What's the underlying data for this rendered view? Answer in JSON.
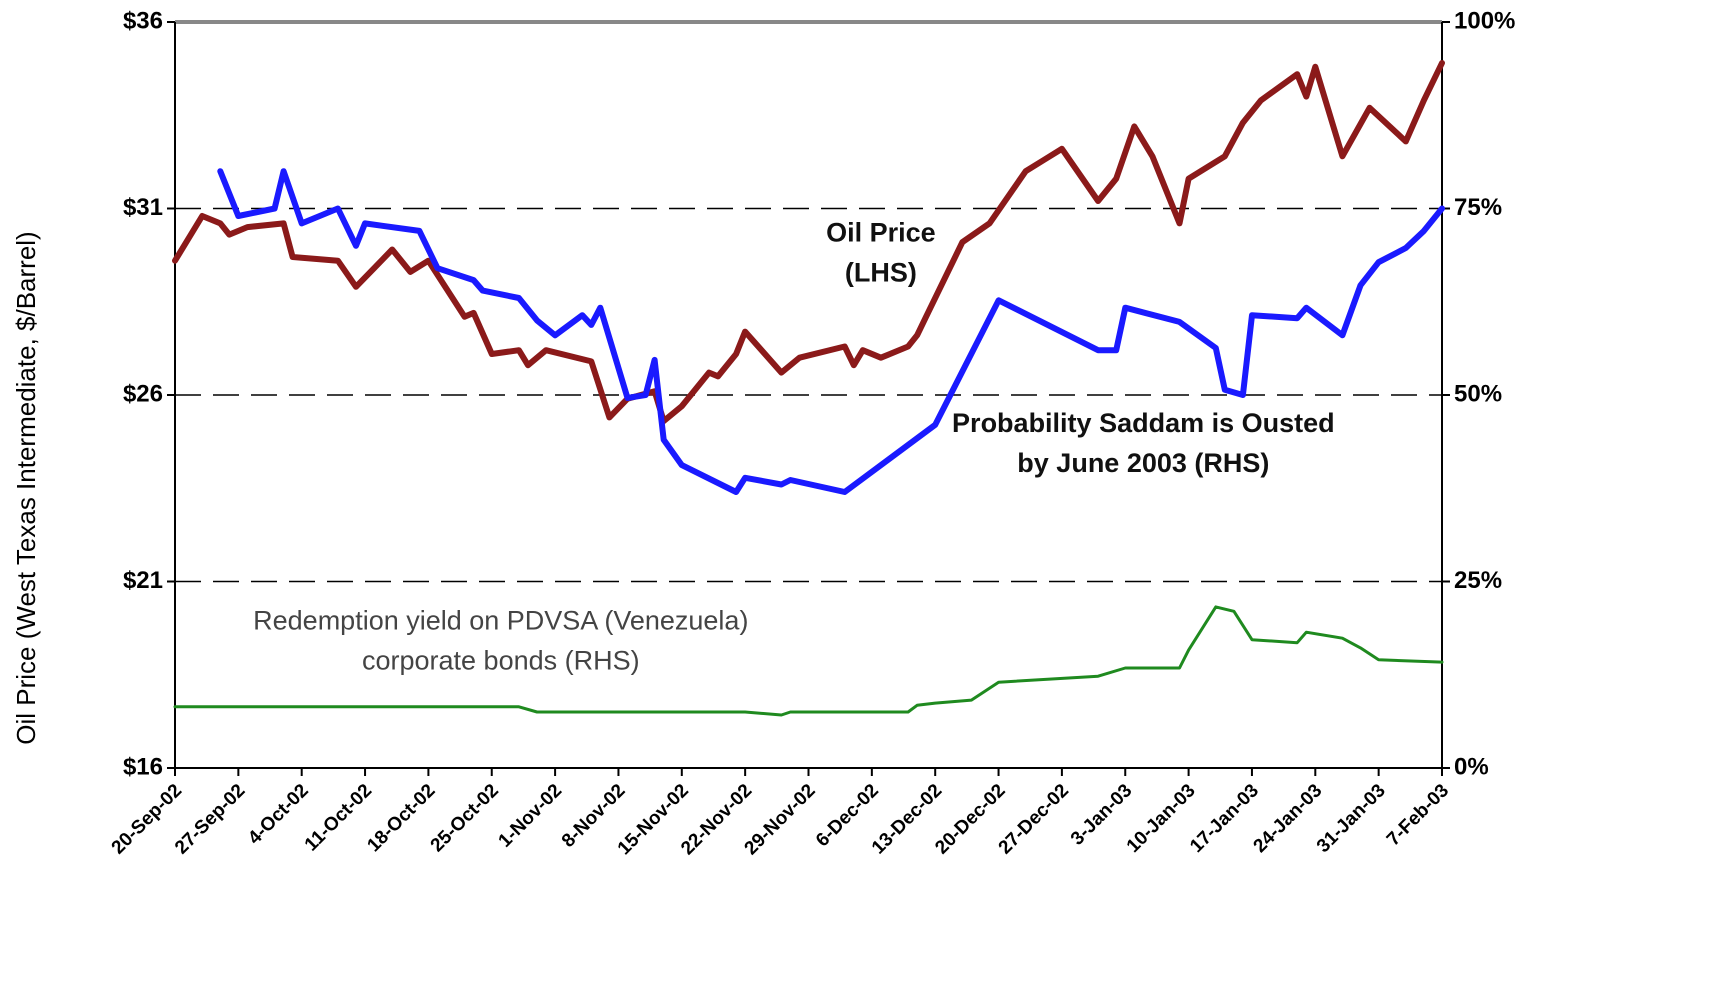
{
  "chart_data": {
    "type": "line",
    "y_label": "Oil Price (West Texas Intermediate, $/Barrel)",
    "annotations": [
      {
        "lines": [
          "Oil Price",
          "(LHS)"
        ],
        "at": [
          "2002-12-07",
          30.3
        ],
        "bold": true
      },
      {
        "lines": [
          "Probability Saddam is Ousted",
          "by June 2003 (RHS)"
        ],
        "at": [
          "2003-01-05",
          46
        ],
        "bold": true,
        "axis": "y2"
      },
      {
        "lines": [
          "Redemption yield on PDVSA (Venezuela)",
          "corporate bonds (RHS)"
        ],
        "at": [
          "2002-10-26",
          19.5
        ],
        "bold": false,
        "axis": "y2"
      }
    ],
    "xlim": [
      "2002-09-20",
      "2003-02-07"
    ],
    "xticks": [
      {
        "value": "2002-09-20",
        "label": "20-Sep-02"
      },
      {
        "value": "2002-09-27",
        "label": "27-Sep-02"
      },
      {
        "value": "2002-10-04",
        "label": "4-Oct-02"
      },
      {
        "value": "2002-10-11",
        "label": "11-Oct-02"
      },
      {
        "value": "2002-10-18",
        "label": "18-Oct-02"
      },
      {
        "value": "2002-10-25",
        "label": "25-Oct-02"
      },
      {
        "value": "2002-11-01",
        "label": "1-Nov-02"
      },
      {
        "value": "2002-11-08",
        "label": "8-Nov-02"
      },
      {
        "value": "2002-11-15",
        "label": "15-Nov-02"
      },
      {
        "value": "2002-11-22",
        "label": "22-Nov-02"
      },
      {
        "value": "2002-11-29",
        "label": "29-Nov-02"
      },
      {
        "value": "2002-12-06",
        "label": "6-Dec-02"
      },
      {
        "value": "2002-12-13",
        "label": "13-Dec-02"
      },
      {
        "value": "2002-12-20",
        "label": "20-Dec-02"
      },
      {
        "value": "2002-12-27",
        "label": "27-Dec-02"
      },
      {
        "value": "2003-01-03",
        "label": "3-Jan-03"
      },
      {
        "value": "2003-01-10",
        "label": "10-Jan-03"
      },
      {
        "value": "2003-01-17",
        "label": "17-Jan-03"
      },
      {
        "value": "2003-01-24",
        "label": "24-Jan-03"
      },
      {
        "value": "2003-01-31",
        "label": "31-Jan-03"
      },
      {
        "value": "2003-02-07",
        "label": "7-Feb-03"
      }
    ],
    "ylim": [
      16,
      36
    ],
    "yticks": [
      {
        "value": 16,
        "label": "$16"
      },
      {
        "value": 21,
        "label": "$21"
      },
      {
        "value": 26,
        "label": "$26"
      },
      {
        "value": 31,
        "label": "$31"
      },
      {
        "value": 36,
        "label": "$36"
      }
    ],
    "y2lim": [
      0,
      100
    ],
    "y2ticks": [
      {
        "value": 0,
        "label": "0%"
      },
      {
        "value": 25,
        "label": "25%"
      },
      {
        "value": 50,
        "label": "50%"
      },
      {
        "value": 75,
        "label": "75%"
      },
      {
        "value": 100,
        "label": "100%"
      }
    ],
    "grid": true,
    "series": [
      {
        "color": "#8b1a1a",
        "width": 6,
        "x": [
          "2002-09-20",
          "2002-09-23",
          "2002-09-25",
          "2002-09-26",
          "2002-09-28",
          "2002-10-02",
          "2002-10-03",
          "2002-10-08",
          "2002-10-10",
          "2002-10-14",
          "2002-10-16",
          "2002-10-18",
          "2002-10-22",
          "2002-10-23",
          "2002-10-25",
          "2002-10-28",
          "2002-10-29",
          "2002-10-31",
          "2002-11-05",
          "2002-11-07",
          "2002-11-09",
          "2002-11-12",
          "2002-11-13",
          "2002-11-15",
          "2002-11-18",
          "2002-11-19",
          "2002-11-21",
          "2002-11-22",
          "2002-11-26",
          "2002-11-28",
          "2002-12-03",
          "2002-12-04",
          "2002-12-05",
          "2002-12-07",
          "2002-12-10",
          "2002-12-11",
          "2002-12-12",
          "2002-12-16",
          "2002-12-19",
          "2002-12-23",
          "2002-12-25",
          "2002-12-27",
          "2002-12-31",
          "2003-01-02",
          "2003-01-04",
          "2003-01-06",
          "2003-01-09",
          "2003-01-10",
          "2003-01-14",
          "2003-01-16",
          "2003-01-18",
          "2003-01-22",
          "2003-01-23",
          "2003-01-24",
          "2003-01-27",
          "2003-01-30",
          "2003-02-03",
          "2003-02-05",
          "2003-02-07"
        ],
        "values": [
          29.6,
          30.8,
          30.6,
          30.3,
          30.5,
          30.6,
          29.7,
          29.6,
          28.9,
          29.9,
          29.3,
          29.6,
          28.1,
          28.2,
          27.1,
          27.2,
          26.8,
          27.2,
          26.9,
          25.4,
          25.9,
          26.1,
          25.3,
          25.7,
          26.6,
          26.5,
          27.1,
          27.7,
          26.6,
          27.0,
          27.3,
          26.8,
          27.2,
          27.0,
          27.3,
          27.6,
          28.1,
          30.1,
          30.6,
          32.0,
          32.3,
          32.6,
          31.2,
          31.8,
          33.2,
          32.4,
          30.6,
          31.8,
          32.4,
          33.3,
          33.9,
          34.6,
          34.0,
          34.8,
          32.4,
          33.7,
          32.8,
          33.9,
          34.9
        ]
      },
      {
        "color": "#1a1aff",
        "width": 6,
        "axis": "y2",
        "x": [
          "2002-09-25",
          "2002-09-27",
          "2002-10-01",
          "2002-10-02",
          "2002-10-04",
          "2002-10-08",
          "2002-10-10",
          "2002-10-11",
          "2002-10-17",
          "2002-10-19",
          "2002-10-23",
          "2002-10-24",
          "2002-10-28",
          "2002-10-30",
          "2002-11-01",
          "2002-11-04",
          "2002-11-05",
          "2002-11-06",
          "2002-11-09",
          "2002-11-11",
          "2002-11-12",
          "2002-11-13",
          "2002-11-15",
          "2002-11-21",
          "2002-11-22",
          "2002-11-26",
          "2002-11-27",
          "2002-12-03",
          "2002-12-13",
          "2002-12-20",
          "2002-12-31",
          "2003-01-02",
          "2003-01-03",
          "2003-01-09",
          "2003-01-13",
          "2003-01-14",
          "2003-01-16",
          "2003-01-17",
          "2003-01-22",
          "2003-01-23",
          "2003-01-27",
          "2003-01-29",
          "2003-01-31",
          "2003-02-03",
          "2003-02-05",
          "2003-02-07"
        ],
        "values": [
          80,
          74,
          75,
          80,
          73,
          75,
          70,
          73,
          72,
          67,
          65.4,
          64,
          63,
          60,
          58,
          60.7,
          59.4,
          61.7,
          49.6,
          50,
          54.7,
          44,
          40.6,
          37,
          38.9,
          38,
          38.6,
          37,
          46,
          62.7,
          56,
          56,
          61.7,
          59.8,
          56.3,
          50.7,
          50,
          60.7,
          60.3,
          61.7,
          58,
          64.7,
          67.8,
          69.7,
          72,
          75
        ]
      },
      {
        "color": "#1f8a1f",
        "width": 3,
        "axis": "y2",
        "x": [
          "2002-09-20",
          "2002-10-28",
          "2002-10-30",
          "2002-11-22",
          "2002-11-26",
          "2002-11-27",
          "2002-12-08",
          "2002-12-10",
          "2002-12-11",
          "2002-12-13",
          "2002-12-17",
          "2002-12-20",
          "2002-12-31",
          "2003-01-03",
          "2003-01-09",
          "2003-01-10",
          "2003-01-13",
          "2003-01-15",
          "2003-01-17",
          "2003-01-22",
          "2003-01-23",
          "2003-01-27",
          "2003-01-29",
          "2003-01-31",
          "2003-02-07"
        ],
        "values": [
          8.2,
          8.2,
          7.5,
          7.5,
          7.1,
          7.5,
          7.5,
          7.5,
          8.4,
          8.7,
          9.1,
          11.5,
          12.3,
          13.4,
          13.4,
          15.8,
          21.6,
          21,
          17.2,
          16.8,
          18.2,
          17.4,
          16.1,
          14.5,
          14.2
        ]
      }
    ]
  }
}
